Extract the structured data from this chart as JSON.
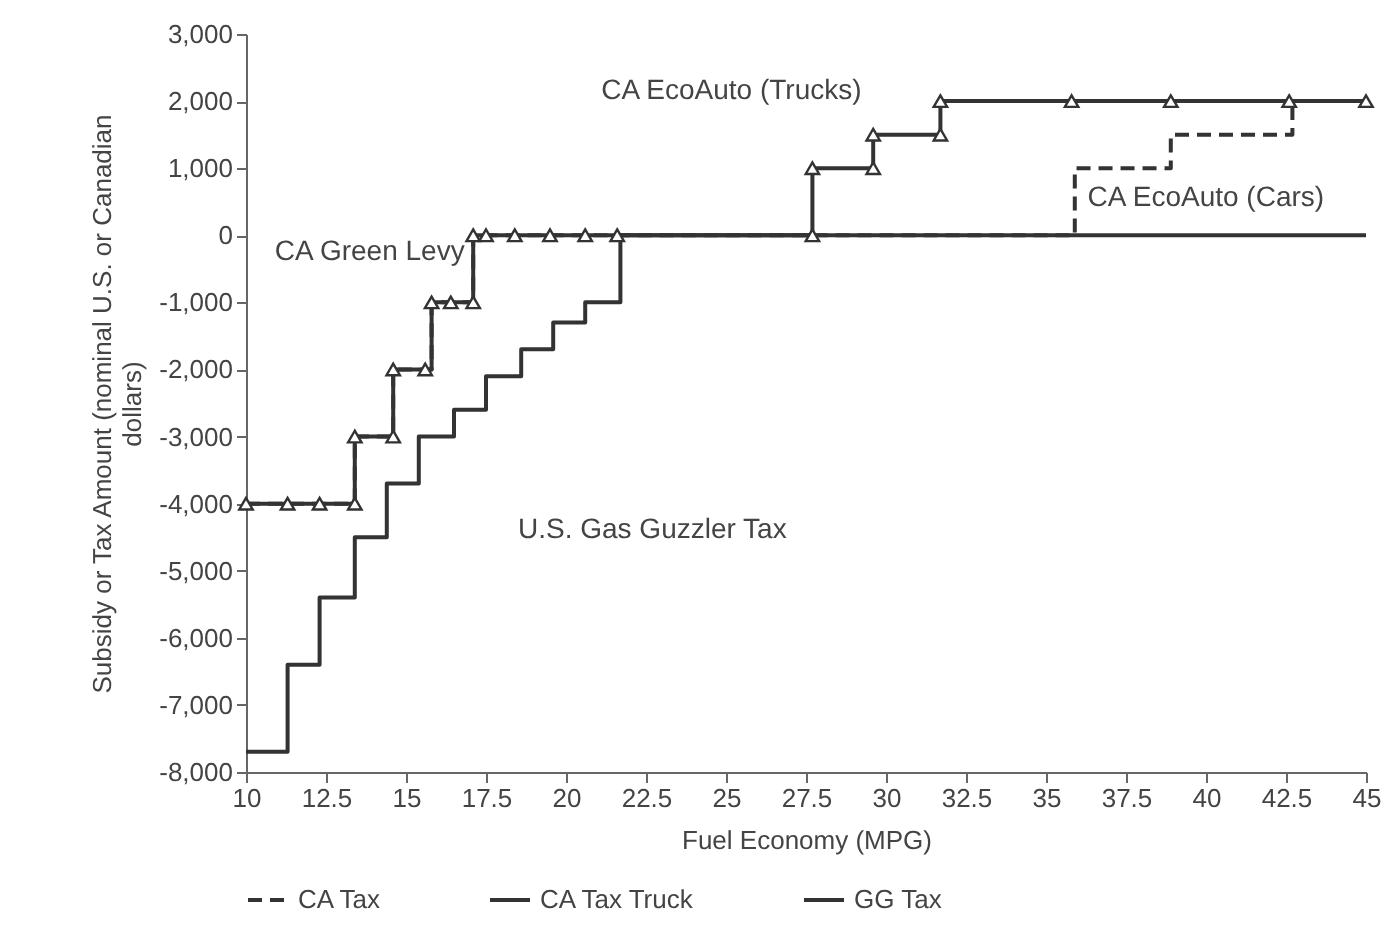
{
  "chart_data": {
    "type": "step",
    "xlabel": "Fuel Economy (MPG)",
    "ylabel": "Subsidy or Tax Amount (nominal U.S. or Canadian dollars)",
    "xlim": [
      10,
      45
    ],
    "xticks": [
      10,
      12.5,
      15,
      17.5,
      20,
      22.5,
      25,
      27.5,
      30,
      32.5,
      35,
      37.5,
      40,
      42.5,
      45
    ],
    "ylim": [
      -8000,
      3000
    ],
    "yticks": [
      {
        "value": -8000,
        "label": "-8,000"
      },
      {
        "value": -7000,
        "label": "-7,000"
      },
      {
        "value": -6000,
        "label": "-6,000"
      },
      {
        "value": -5000,
        "label": "-5,000"
      },
      {
        "value": -4000,
        "label": "-4,000"
      },
      {
        "value": -3000,
        "label": "-3,000"
      },
      {
        "value": -2000,
        "label": "-2,000"
      },
      {
        "value": -1000,
        "label": "-1,000"
      },
      0,
      {
        "value": 1000,
        "label": "1,000"
      },
      {
        "value": 2000,
        "label": "2,000"
      },
      {
        "value": 3000,
        "label": "3,000"
      }
    ],
    "grid": false,
    "legend": "bottom",
    "series": [
      {
        "name": "CA Tax",
        "color": "#333333",
        "line_style": "dashed",
        "x": [
          10,
          13.4,
          14.6,
          15.8,
          17.1,
          35.9,
          38.9,
          42.7,
          45
        ],
        "values": [
          -4000,
          -3000,
          -2000,
          -1000,
          0,
          1000,
          1500,
          2000,
          2000
        ]
      },
      {
        "name": "CA Tax Truck",
        "color": "#333333",
        "line_style": "solid",
        "marker": "triangle",
        "x": [
          10,
          11.3,
          12.3,
          13.4,
          13.4,
          14.6,
          14.6,
          15.6,
          15.8,
          16.4,
          17.1,
          17.1,
          17.5,
          18.4,
          19.5,
          20.6,
          21.6,
          27.7,
          27.7,
          29.6,
          29.6,
          31.7,
          31.7,
          35.8,
          38.9,
          42.6,
          45
        ],
        "values": [
          -4000,
          -4000,
          -4000,
          -4000,
          -3000,
          -3000,
          -2000,
          -2000,
          -1000,
          -1000,
          -1000,
          0,
          0,
          0,
          0,
          0,
          0,
          0,
          1000,
          1000,
          1500,
          1500,
          2000,
          2000,
          2000,
          2000,
          2000
        ]
      },
      {
        "name": "GG Tax",
        "color": "#333333",
        "line_style": "solid",
        "x": [
          10,
          11.3,
          12.3,
          13.4,
          14.4,
          15.4,
          16.5,
          17.5,
          18.6,
          19.6,
          20.6,
          21.7,
          45
        ],
        "values": [
          -7700,
          -6400,
          -5400,
          -4500,
          -3700,
          -3000,
          -2600,
          -2100,
          -1700,
          -1300,
          -1000,
          0,
          0
        ]
      }
    ],
    "annotations": [
      "CA Green Levy",
      "U.S. Gas Guzzler Tax",
      "CA EcoAuto (Trucks)",
      "CA EcoAuto (Cars)"
    ]
  }
}
